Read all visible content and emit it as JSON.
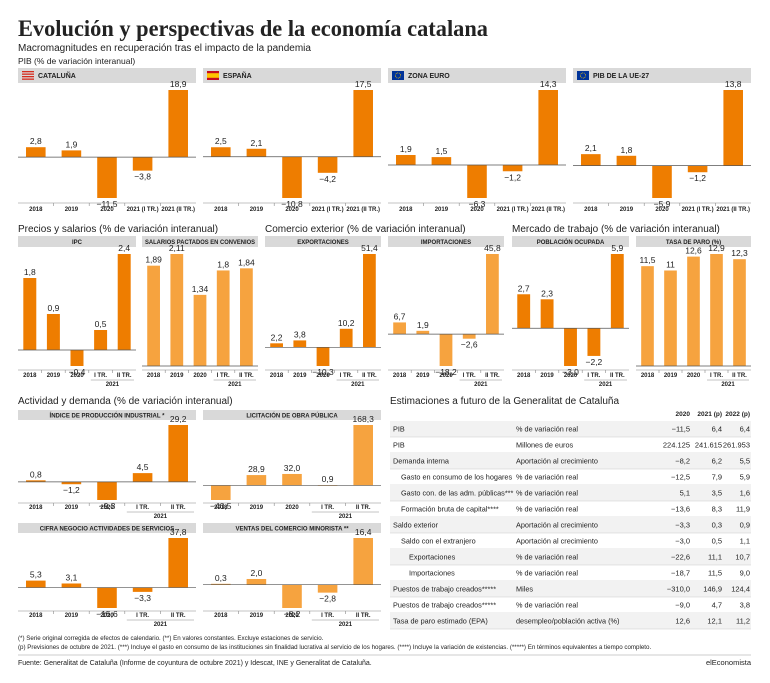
{
  "header": {
    "title": "Evolución y perspectivas de la economía catalana",
    "subtitle": "Macromagnitudes en recuperación tras el impacto de la pandemia"
  },
  "sections": [
    "PIB (% de variación interanual)",
    "Precios y salarios (% de variación interanual)",
    "Comercio exterior (% de variación interanual)",
    "Mercado de trabajo (% de variación interanual)",
    "Actividad y demanda (% de variación interanual)"
  ],
  "chart_data": [
    {
      "type": "bar",
      "title": "CATALUÑA",
      "categories": [
        "2018",
        "2019",
        "2020",
        "2021 (I TR.)",
        "2021 (II TR.)"
      ],
      "values": [
        2.8,
        1.9,
        -11.5,
        -3.8,
        18.9
      ],
      "value_labels": [
        "2,8",
        "1,9",
        "−11,5",
        "−3,8",
        "18,9"
      ],
      "color": "#ee7d00"
    },
    {
      "type": "bar",
      "title": "ESPAÑA",
      "categories": [
        "2018",
        "2019",
        "2020",
        "2021 (I TR.)",
        "2021 (II TR.)"
      ],
      "values": [
        2.5,
        2.1,
        -10.8,
        -4.2,
        17.5
      ],
      "value_labels": [
        "2,5",
        "2,1",
        "−10,8",
        "−4,2",
        "17,5"
      ],
      "color": "#ee7d00"
    },
    {
      "type": "bar",
      "title": "ZONA EURO",
      "categories": [
        "2018",
        "2019",
        "2020",
        "2021 (I TR.)",
        "2021 (II TR.)"
      ],
      "values": [
        1.9,
        1.5,
        -6.3,
        -1.2,
        14.3
      ],
      "value_labels": [
        "1,9",
        "1,5",
        "−6,3",
        "−1,2",
        "14,3"
      ],
      "color": "#ee7d00"
    },
    {
      "type": "bar",
      "title": "PIB DE LA UE-27",
      "categories": [
        "2018",
        "2019",
        "2020",
        "2021 (I TR.)",
        "2021 (II TR.)"
      ],
      "values": [
        2.1,
        1.8,
        -5.9,
        -1.2,
        13.8
      ],
      "value_labels": [
        "2,1",
        "1,8",
        "−5,9",
        "−1,2",
        "13,8"
      ],
      "color": "#ee7d00"
    },
    {
      "type": "bar",
      "title": "IPC",
      "categories": [
        "2018",
        "2019",
        "2020",
        "I TR.",
        "II TR."
      ],
      "group": "2021",
      "values": [
        1.8,
        0.9,
        -0.4,
        0.5,
        2.4
      ],
      "value_labels": [
        "1,8",
        "0,9",
        "−0,4",
        "0,5",
        "2,4"
      ],
      "color": "#ee7d00"
    },
    {
      "type": "bar",
      "title": "SALARIOS PACTADOS EN CONVENIOS",
      "categories": [
        "2018",
        "2019",
        "2020",
        "I TR.",
        "II TR."
      ],
      "group": "2021",
      "values": [
        1.89,
        2.11,
        1.34,
        1.8,
        1.84
      ],
      "value_labels": [
        "1,89",
        "2,11",
        "1,34",
        "1,8",
        "1,84"
      ],
      "color": "#f6a33f"
    },
    {
      "type": "bar",
      "title": "EXPORTACIONES",
      "categories": [
        "2018",
        "2019",
        "2020",
        "I TR.",
        "II TR."
      ],
      "group": "2021",
      "values": [
        2.2,
        3.8,
        -10.3,
        10.2,
        51.4
      ],
      "value_labels": [
        "2,2",
        "3,8",
        "−10,3",
        "10,2",
        "51,4"
      ],
      "color": "#ee7d00"
    },
    {
      "type": "bar",
      "title": "IMPORTACIONES",
      "categories": [
        "2018",
        "2019",
        "2020",
        "I TR.",
        "II TR."
      ],
      "group": "2021",
      "values": [
        6.7,
        1.9,
        -18.2,
        -2.6,
        45.8
      ],
      "value_labels": [
        "6,7",
        "1,9",
        "−18,2",
        "−2,6",
        "45,8"
      ],
      "color": "#f6a33f"
    },
    {
      "type": "bar",
      "title": "POBLACIÓN OCUPADA",
      "categories": [
        "2018",
        "2019",
        "2020",
        "I TR.",
        "II TR."
      ],
      "group": "2021",
      "values": [
        2.7,
        2.3,
        -3.0,
        -2.2,
        5.9
      ],
      "value_labels": [
        "2,7",
        "2,3",
        "−3,0",
        "−2,2",
        "5,9"
      ],
      "color": "#ee7d00"
    },
    {
      "type": "bar",
      "title": "TASA DE PARO (%)",
      "categories": [
        "2018",
        "2019",
        "2020",
        "I TR.",
        "II TR."
      ],
      "group": "2021",
      "values": [
        11.5,
        11,
        12.6,
        12.9,
        12.3
      ],
      "value_labels": [
        "11,5",
        "11",
        "12,6",
        "12,9",
        "12,3"
      ],
      "color": "#f6a33f"
    },
    {
      "type": "bar",
      "title": "ÍNDICE DE PRODUCCIÓN INDUSTRIAL *",
      "categories": [
        "2018",
        "2019",
        "2020",
        "I TR.",
        "II TR."
      ],
      "group": "2021",
      "values": [
        0.8,
        -1.2,
        -9.3,
        4.5,
        29.2
      ],
      "value_labels": [
        "0,8",
        "−1,2",
        "−9,3",
        "4,5",
        "29,2"
      ],
      "color": "#ee7d00"
    },
    {
      "type": "bar",
      "title": "LICITACIÓN DE OBRA PÚBLICA",
      "categories": [
        "2018",
        "2019",
        "2020",
        "I TR.",
        "II TR."
      ],
      "group": "2021",
      "values": [
        -40.5,
        28.9,
        32.0,
        0.9,
        168.3
      ],
      "value_labels": [
        "−40,5",
        "28,9",
        "32,0",
        "0,9",
        "168,3"
      ],
      "color": "#f6a33f"
    },
    {
      "type": "bar",
      "title": "CIFRA NEGOCIO ACTIVIDADES DE SERVICIOS",
      "categories": [
        "2018",
        "2019",
        "2020",
        "I TR.",
        "II TR."
      ],
      "group": "2021",
      "values": [
        5.3,
        3.1,
        -15.6,
        -3.3,
        37.8
      ],
      "value_labels": [
        "5,3",
        "3,1",
        "−15,6",
        "−3,3",
        "37,8"
      ],
      "color": "#ee7d00"
    },
    {
      "type": "bar",
      "title": "VENTAS DEL COMERCIO MINORISTA **",
      "categories": [
        "2018",
        "2019",
        "2020",
        "I TR.",
        "II TR."
      ],
      "group": "2021",
      "values": [
        0.3,
        2.0,
        -8.2,
        -2.8,
        16.4
      ],
      "value_labels": [
        "0,3",
        "2,0",
        "−8,2",
        "−2,8",
        "16,4"
      ],
      "color": "#f6a33f"
    }
  ],
  "table": {
    "title": "Estimaciones a futuro de la Generalitat de Cataluña",
    "columns": [
      "2020",
      "2021 (p)",
      "2022 (p)"
    ],
    "rows": [
      {
        "label": "PIB",
        "unit": "% de variación real",
        "values": [
          "−11,5",
          "6,4",
          "6,4"
        ]
      },
      {
        "label": "PIB",
        "unit": "Millones de euros",
        "values": [
          "224.125",
          "241.615",
          "261.953"
        ]
      },
      {
        "label": "Demanda interna",
        "unit": "Aportación al crecimiento",
        "values": [
          "−8,2",
          "6,2",
          "5,5"
        ],
        "rows": [
          {
            "label": "Gasto en consumo de los hogares",
            "unit": "% de variación real",
            "values": [
              "−12,5",
              "7,9",
              "5,9"
            ]
          },
          {
            "label": "Gasto con. de las adm. públicas***",
            "unit": "% de variación real",
            "values": [
              "5,1",
              "3,5",
              "1,6"
            ]
          },
          {
            "label": "Formación bruta de capital****",
            "unit": "% de variación real",
            "values": [
              "−13,6",
              "8,3",
              "11,9"
            ]
          }
        ]
      },
      {
        "label": "Saldo exterior",
        "unit": "Aportación al crecimiento",
        "values": [
          "−3,3",
          "0,3",
          "0,9"
        ],
        "rows": [
          {
            "label": "Saldo con el extranjero",
            "unit": "Aportación al crecimiento",
            "values": [
              "−3,0",
              "0,5",
              "1,1"
            ],
            "rows": [
              {
                "label": "Exportaciones",
                "unit": "% de variación real",
                "values": [
                  "−22,6",
                  "11,1",
                  "10,7"
                ]
              },
              {
                "label": "Importaciones",
                "unit": "% de variación real",
                "values": [
                  "−18,7",
                  "11,5",
                  "9,0"
                ]
              }
            ]
          }
        ]
      },
      {
        "label": "Puestos de trabajo creados*****",
        "unit": "Miles",
        "values": [
          "−310,0",
          "146,9",
          "124,4"
        ]
      },
      {
        "label": "Puestos de trabajo creados*****",
        "unit": "% de variación real",
        "values": [
          "−9,0",
          "4,7",
          "3,8"
        ]
      },
      {
        "label": "Tasa de paro estimado (EPA)",
        "unit": "desempleo/población activa (%)",
        "values": [
          "12,6",
          "12,1",
          "11,2"
        ]
      }
    ]
  },
  "footnotes": [
    "(*) Serie original corregida de efectos de calendario. (**) En valores constantes. Excluye estaciones de servicio.",
    "(p) Previsiones de octubre de 2021. (***) Incluye el gasto en consumo de las instituciones sin finalidad lucrativa al servicio de los hogares. (****) Incluye la variación de existencias. (*****) En términos equivalentes a tiempo completo."
  ],
  "source": "Fuente: Generalitat de Cataluña (Informe de coyuntura de octubre 2021) y Idescat, INE y Generalitat de Cataluña.",
  "brand": "elEconomista"
}
